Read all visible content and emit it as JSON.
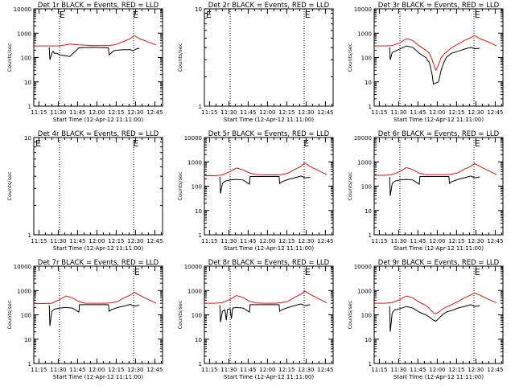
{
  "colors": {
    "events": "#000000",
    "lld": "#e01010",
    "frame": "#000000",
    "marker": "#000000"
  },
  "shared": {
    "xlabel": "Start Time (12-Apr-12 11:11:00)",
    "ylabel": "Counts/sec",
    "x_ticks": [
      "11:15",
      "11:30",
      "11:45",
      "12:00",
      "12:15",
      "12:30",
      "12:45"
    ],
    "x_tick_minutes": [
      4,
      19,
      34,
      49,
      64,
      79,
      94
    ],
    "x_range_minutes": [
      0,
      100
    ],
    "marker_lines_minutes": [
      20,
      77.5
    ],
    "e_marker_label": "E"
  },
  "chart_data": [
    {
      "title": "Det 1r BLACK = Events, RED = LLD",
      "type": "line",
      "yscale": "log",
      "ylim": [
        1,
        10000
      ],
      "y_ticks": [
        "1",
        "10",
        "100",
        "1000",
        "10000"
      ],
      "e_markers_minutes": [
        20,
        77
      ],
      "series": [
        {
          "name": "LLD",
          "color": "#e01010",
          "x": [
            0,
            10,
            20,
            28,
            35,
            45,
            58,
            63,
            70,
            75,
            78,
            82,
            88,
            95
          ],
          "y": [
            300,
            300,
            300,
            360,
            330,
            310,
            310,
            330,
            460,
            600,
            800,
            600,
            450,
            330
          ]
        },
        {
          "name": "Events",
          "color": "#000000",
          "x": [
            12,
            12.5,
            14,
            15,
            16,
            18,
            20,
            28,
            35,
            45,
            58,
            58.5,
            60,
            62,
            65,
            70,
            75,
            77,
            80,
            82
          ],
          "y": [
            260,
            80,
            150,
            180,
            150,
            150,
            130,
            110,
            250,
            260,
            250,
            130,
            150,
            190,
            200,
            210,
            210,
            190,
            230,
            240
          ]
        }
      ]
    },
    {
      "title": "Det 2r BLACK = Events, RED = LLD",
      "type": "line",
      "yscale": "log",
      "ylim": [
        1,
        10
      ],
      "y_ticks": [
        "1",
        "10"
      ],
      "e_markers_minutes": [
        0,
        78
      ],
      "series": []
    },
    {
      "title": "Det 3r BLACK = Events, RED = LLD",
      "type": "line",
      "yscale": "log",
      "ylim": [
        1,
        10000
      ],
      "y_ticks": [
        "1",
        "10",
        "100",
        "1000",
        "10000"
      ],
      "e_markers_minutes": [
        78
      ],
      "series": [
        {
          "name": "LLD",
          "color": "#e01010",
          "x": [
            0,
            8,
            14,
            20,
            25,
            30,
            35,
            40,
            43,
            45,
            47,
            48,
            50,
            52,
            55,
            60,
            70,
            75,
            78,
            82,
            88,
            95
          ],
          "y": [
            300,
            300,
            310,
            400,
            600,
            500,
            300,
            200,
            150,
            80,
            40,
            30,
            50,
            100,
            150,
            250,
            500,
            650,
            800,
            600,
            450,
            300
          ]
        },
        {
          "name": "Events",
          "color": "#000000",
          "x": [
            12,
            12.5,
            14,
            18,
            25,
            30,
            35,
            40,
            43,
            45,
            46,
            48,
            50,
            52,
            54,
            56,
            60,
            65,
            70,
            75,
            78,
            82
          ],
          "y": [
            260,
            80,
            160,
            200,
            300,
            260,
            150,
            100,
            60,
            20,
            8,
            9,
            10,
            30,
            60,
            100,
            150,
            180,
            220,
            260,
            230,
            240
          ]
        }
      ]
    },
    {
      "title": "Det 4r BLACK = Events, RED = LLD",
      "type": "line",
      "yscale": "log",
      "ylim": [
        1,
        10
      ],
      "y_ticks": [
        "1",
        "10"
      ],
      "e_markers_minutes": [
        0,
        77
      ],
      "series": []
    },
    {
      "title": "Det 5r BLACK = Events, RED = LLD",
      "type": "line",
      "yscale": "log",
      "ylim": [
        1,
        10000
      ],
      "y_ticks": [
        "1",
        "10",
        "100",
        "1000",
        "10000"
      ],
      "e_markers_minutes": [
        77
      ],
      "series": [
        {
          "name": "LLD",
          "color": "#e01010",
          "x": [
            0,
            8,
            14,
            20,
            25,
            30,
            35,
            40,
            45,
            55,
            60,
            65,
            70,
            75,
            78,
            82,
            88,
            95
          ],
          "y": [
            270,
            270,
            290,
            400,
            560,
            470,
            350,
            300,
            290,
            290,
            300,
            340,
            480,
            650,
            900,
            650,
            450,
            300
          ]
        },
        {
          "name": "Events",
          "color": "#000000",
          "x": [
            12,
            12.5,
            14,
            16,
            20,
            25,
            30,
            35,
            35.5,
            40,
            45,
            55,
            58,
            58.5,
            60,
            65,
            70,
            75,
            78,
            82
          ],
          "y": [
            240,
            50,
            130,
            160,
            180,
            190,
            180,
            120,
            250,
            250,
            250,
            250,
            250,
            130,
            150,
            190,
            220,
            260,
            220,
            230
          ]
        }
      ]
    },
    {
      "title": "Det 6r BLACK = Events, RED = LLD",
      "type": "line",
      "yscale": "log",
      "ylim": [
        1,
        10000
      ],
      "y_ticks": [
        "1",
        "10",
        "100",
        "1000",
        "10000"
      ],
      "e_markers_minutes": [
        78
      ],
      "series": [
        {
          "name": "LLD",
          "color": "#e01010",
          "x": [
            0,
            8,
            14,
            20,
            25,
            30,
            35,
            40,
            45,
            55,
            60,
            65,
            70,
            75,
            78,
            82,
            88,
            95
          ],
          "y": [
            280,
            280,
            300,
            400,
            580,
            480,
            340,
            300,
            300,
            300,
            310,
            350,
            500,
            650,
            850,
            650,
            450,
            300
          ]
        },
        {
          "name": "Events",
          "color": "#000000",
          "x": [
            12,
            12.5,
            14,
            16,
            20,
            25,
            30,
            35,
            35.5,
            40,
            45,
            55,
            58,
            58.5,
            60,
            65,
            70,
            75,
            78,
            82
          ],
          "y": [
            240,
            40,
            130,
            160,
            180,
            190,
            180,
            120,
            250,
            250,
            250,
            250,
            250,
            130,
            150,
            190,
            220,
            260,
            220,
            240
          ]
        }
      ]
    },
    {
      "title": "Det 7r BLACK = Events, RED = LLD",
      "type": "line",
      "yscale": "log",
      "ylim": [
        1,
        10000
      ],
      "y_ticks": [
        "1",
        "10",
        "100",
        "1000",
        "10000"
      ],
      "e_markers_minutes": [
        78
      ],
      "series": [
        {
          "name": "LLD",
          "color": "#e01010",
          "x": [
            0,
            8,
            14,
            20,
            25,
            30,
            35,
            40,
            45,
            55,
            60,
            65,
            70,
            75,
            78,
            82,
            88,
            95
          ],
          "y": [
            290,
            290,
            300,
            420,
            600,
            500,
            350,
            300,
            300,
            300,
            310,
            350,
            500,
            650,
            850,
            650,
            450,
            300
          ]
        },
        {
          "name": "Events",
          "color": "#000000",
          "x": [
            12,
            12.5,
            14,
            16,
            20,
            25,
            30,
            35,
            35.5,
            40,
            45,
            55,
            58,
            58.5,
            60,
            65,
            70,
            75,
            78,
            82
          ],
          "y": [
            250,
            35,
            140,
            170,
            190,
            200,
            190,
            130,
            260,
            260,
            260,
            260,
            260,
            140,
            160,
            200,
            230,
            270,
            230,
            250
          ]
        }
      ]
    },
    {
      "title": "Det 8r BLACK = Events, RED = LLD",
      "type": "line",
      "yscale": "log",
      "ylim": [
        1,
        10000
      ],
      "y_ticks": [
        "1",
        "10",
        "100",
        "1000",
        "10000"
      ],
      "e_markers_minutes": [
        78
      ],
      "series": [
        {
          "name": "LLD",
          "color": "#e01010",
          "x": [
            0,
            8,
            14,
            20,
            25,
            30,
            35,
            40,
            45,
            55,
            60,
            65,
            70,
            75,
            78,
            82,
            88,
            95
          ],
          "y": [
            300,
            300,
            320,
            430,
            620,
            520,
            360,
            310,
            300,
            300,
            320,
            360,
            520,
            700,
            950,
            700,
            480,
            310
          ]
        },
        {
          "name": "Events",
          "color": "#000000",
          "x": [
            12,
            12.5,
            14,
            16,
            17,
            18,
            20,
            21,
            22,
            25,
            30,
            35,
            35.5,
            40,
            45,
            55,
            58,
            58.5,
            60,
            65,
            70,
            75,
            78,
            82
          ],
          "y": [
            250,
            50,
            140,
            160,
            60,
            170,
            180,
            70,
            190,
            200,
            190,
            130,
            260,
            260,
            260,
            260,
            260,
            140,
            160,
            200,
            240,
            280,
            240,
            260
          ]
        }
      ]
    },
    {
      "title": "Det 9r BLACK = Events, RED = LLD",
      "type": "line",
      "yscale": "log",
      "ylim": [
        1,
        10000
      ],
      "y_ticks": [
        "1",
        "10",
        "100",
        "1000",
        "10000"
      ],
      "e_markers_minutes": [
        78
      ],
      "series": [
        {
          "name": "LLD",
          "color": "#e01010",
          "x": [
            0,
            8,
            14,
            20,
            25,
            30,
            35,
            40,
            43,
            46,
            48,
            50,
            53,
            56,
            60,
            65,
            70,
            75,
            78,
            82,
            88,
            95
          ],
          "y": [
            300,
            300,
            320,
            420,
            600,
            500,
            330,
            250,
            180,
            120,
            110,
            130,
            170,
            210,
            260,
            350,
            500,
            650,
            800,
            650,
            450,
            310
          ]
        },
        {
          "name": "Events",
          "color": "#000000",
          "x": [
            12,
            12.5,
            14,
            16,
            20,
            25,
            30,
            35,
            40,
            43,
            46,
            48,
            50,
            53,
            56,
            60,
            65,
            70,
            75,
            78,
            82
          ],
          "y": [
            230,
            20,
            120,
            160,
            180,
            220,
            190,
            130,
            100,
            80,
            60,
            55,
            70,
            100,
            130,
            150,
            190,
            220,
            260,
            220,
            240
          ]
        }
      ]
    }
  ]
}
